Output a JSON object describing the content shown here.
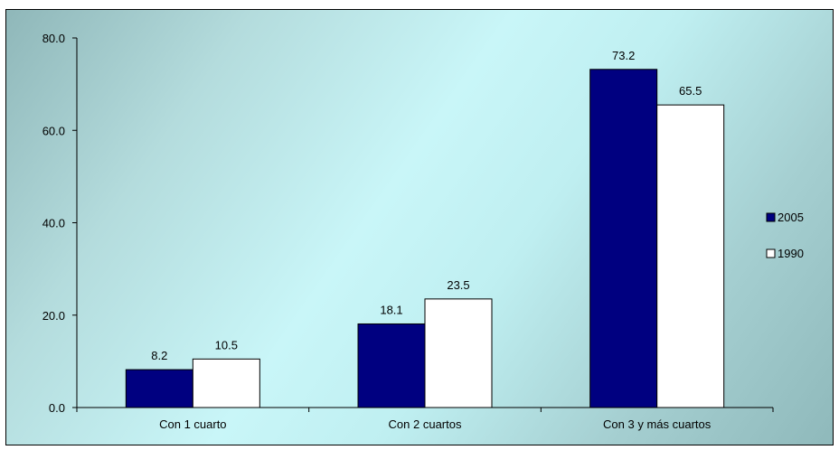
{
  "chart_data": {
    "type": "bar",
    "categories": [
      "Con 1 cuarto",
      "Con 2 cuartos",
      "Con 3 y más cuartos"
    ],
    "series": [
      {
        "name": "2005",
        "values": [
          8.2,
          18.1,
          73.2
        ],
        "color": "#000080"
      },
      {
        "name": "1990",
        "values": [
          10.5,
          23.5,
          65.5
        ],
        "color": "#ffffff"
      }
    ],
    "data_labels": [
      [
        "8.2",
        "18.1",
        "73.2"
      ],
      [
        "10.5",
        "23.5",
        "65.5"
      ]
    ],
    "y_ticks": [
      "0.0",
      "20.0",
      "40.0",
      "60.0",
      "80.0"
    ],
    "y_tick_values": [
      0,
      20,
      40,
      60,
      80
    ],
    "ylim": [
      0,
      80
    ],
    "title": "",
    "xlabel": "",
    "ylabel": "",
    "grid": false,
    "legend_position": "right"
  }
}
